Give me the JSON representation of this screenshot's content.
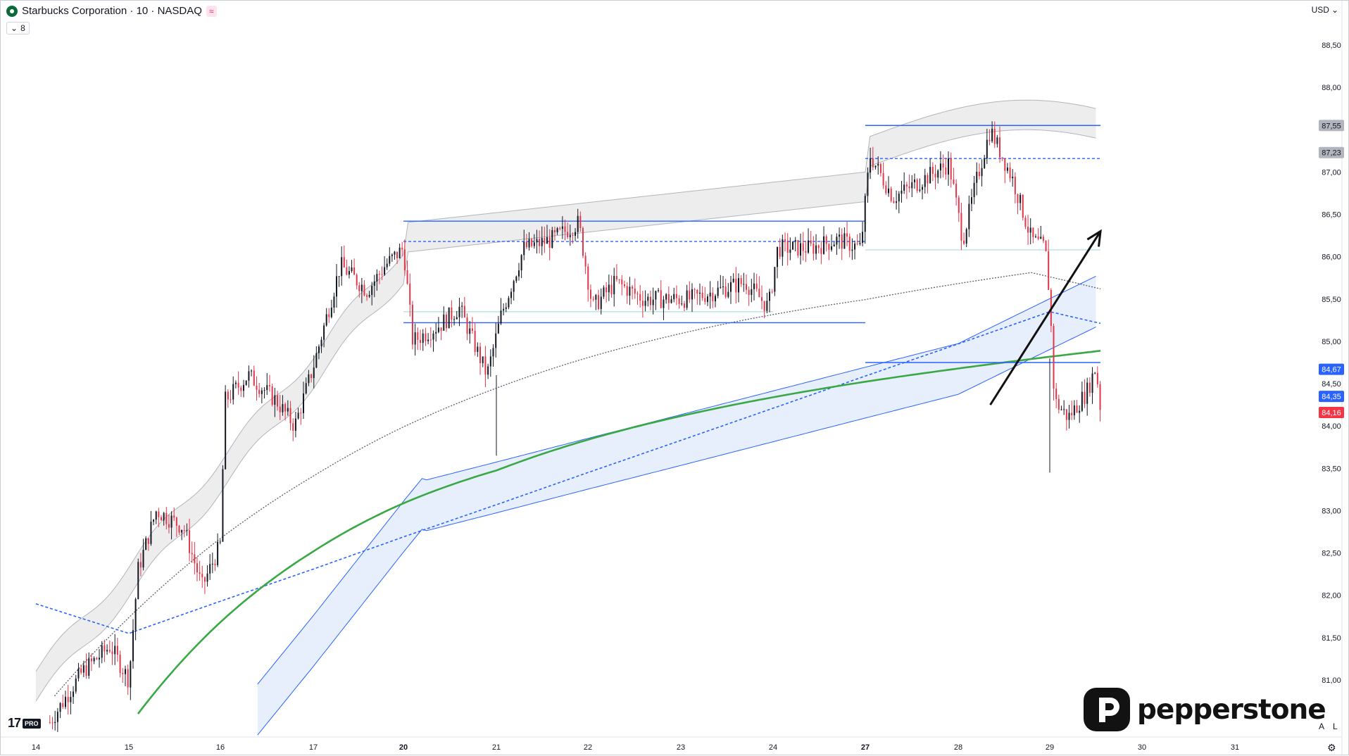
{
  "header": {
    "title": "Starbucks Corporation · 10 · NASDAQ",
    "indicator_count": "8",
    "currency": "USD"
  },
  "axis": {
    "y_labels": [
      "88,50",
      "88,00",
      "87,00",
      "86,50",
      "86,00",
      "85,50",
      "85,00",
      "84,50",
      "84,00",
      "83,50",
      "83,00",
      "82,50",
      "82,00",
      "81,50",
      "81,00"
    ],
    "x_labels": [
      "14",
      "15",
      "16",
      "17",
      "20",
      "21",
      "22",
      "23",
      "24",
      "27",
      "28",
      "29",
      "30",
      "31"
    ]
  },
  "price_tags": [
    {
      "label": "87,55",
      "kind": "gray"
    },
    {
      "label": "87,23",
      "kind": "gray"
    },
    {
      "label": "84,67",
      "kind": "blue"
    },
    {
      "label": "84,35",
      "kind": "blue"
    },
    {
      "label": "84,16",
      "kind": "red"
    }
  ],
  "colors": {
    "up": "#131722",
    "down": "#e0364a",
    "blue_line": "#2962ff",
    "green_line": "#3aa845",
    "vwap_gray": "#5d606b",
    "band_gray_fill": "#ededed",
    "band_blue_fill": "#e8effc"
  },
  "chart_data": {
    "type": "candlestick",
    "ylim": [
      80.5,
      88.8
    ],
    "sessions": [
      "14",
      "15",
      "16",
      "17",
      "20",
      "21",
      "22",
      "23",
      "24",
      "27",
      "28",
      "29",
      "30",
      "31"
    ],
    "price_path": [
      [
        14.3,
        80.5
      ],
      [
        14.5,
        81.2
      ],
      [
        14.8,
        81.4
      ],
      [
        15.0,
        80.9
      ],
      [
        15.1,
        82.3
      ],
      [
        15.3,
        83.0
      ],
      [
        15.6,
        82.8
      ],
      [
        15.8,
        82.0
      ],
      [
        16.0,
        82.6
      ],
      [
        16.1,
        84.2
      ],
      [
        16.3,
        84.6
      ],
      [
        16.6,
        84.3
      ],
      [
        16.8,
        84.0
      ],
      [
        17.0,
        84.6
      ],
      [
        17.4,
        85.9
      ],
      [
        17.7,
        85.7
      ],
      [
        18.0,
        86.0
      ],
      [
        18.1,
        85.2
      ],
      [
        18.4,
        84.8
      ],
      [
        18.7,
        85.4
      ],
      [
        19.0,
        84.5
      ],
      [
        19.2,
        84.9
      ],
      [
        19.5,
        85.9
      ],
      [
        19.8,
        86.3
      ],
      [
        20.0,
        86.1
      ],
      [
        20.4,
        85.9
      ],
      [
        20.8,
        86.3
      ],
      [
        20.9,
        85.4
      ],
      [
        21.2,
        85.5
      ],
      [
        21.6,
        85.2
      ],
      [
        21.7,
        85.8
      ],
      [
        22.0,
        85.5
      ],
      [
        22.4,
        85.2
      ],
      [
        22.6,
        85.5
      ],
      [
        23.0,
        85.7
      ],
      [
        23.3,
        85.5
      ],
      [
        23.5,
        85.9
      ],
      [
        23.6,
        86.1
      ],
      [
        23.8,
        86.4
      ],
      [
        24.0,
        86.4
      ],
      [
        24.2,
        86.5
      ],
      [
        24.5,
        86.6
      ],
      [
        24.7,
        87.0
      ],
      [
        24.9,
        87.1
      ],
      [
        25.1,
        86.1
      ],
      [
        25.3,
        87.1
      ],
      [
        25.5,
        87.3
      ],
      [
        25.6,
        86.8
      ],
      [
        25.8,
        86.2
      ],
      [
        26.0,
        86.1
      ],
      [
        26.2,
        85.5
      ],
      [
        26.4,
        84.6
      ],
      [
        26.5,
        84.1
      ],
      [
        26.7,
        84.4
      ],
      [
        26.8,
        84.7
      ],
      [
        26.9,
        84.3
      ]
    ],
    "levels": [
      {
        "y": 87.55,
        "style": "solid",
        "x_start": 27.0
      },
      {
        "y": 87.16,
        "style": "dashed",
        "x_start": 27.0
      },
      {
        "y": 86.42,
        "style": "solid",
        "x_start": 20.0,
        "x_end": 27.0
      },
      {
        "y": 86.18,
        "style": "dashed",
        "x_start": 20.0,
        "x_end": 27.0
      },
      {
        "y": 85.22,
        "style": "solid",
        "x_start": 20.0,
        "x_end": 27.0
      },
      {
        "y": 84.75,
        "style": "solid",
        "x_start": 27.0
      }
    ],
    "arrow": {
      "from": [
        28.35,
        84.25
      ],
      "to": [
        29.55,
        86.3
      ]
    }
  }
}
